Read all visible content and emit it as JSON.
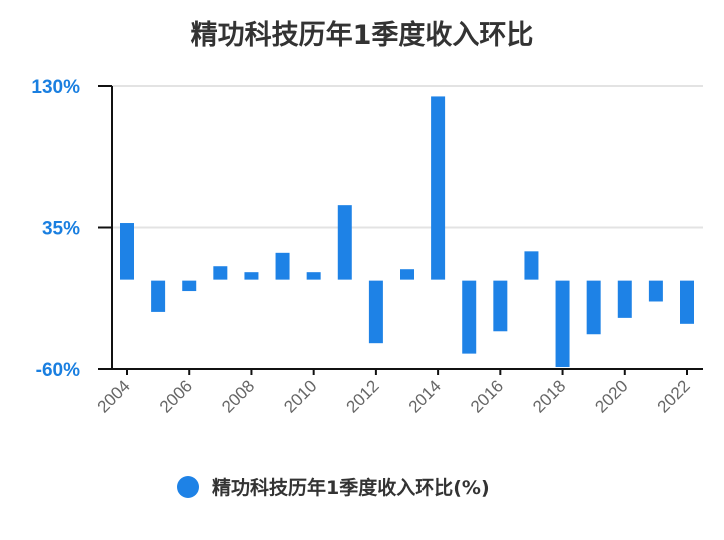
{
  "chart_data": {
    "type": "bar",
    "title": "精功科技历年1季度收入环比",
    "xlabel": "",
    "ylabel": "",
    "ylim": [
      -60,
      130
    ],
    "yticks": [
      "130%",
      "35%",
      "-60%"
    ],
    "ytick_values": [
      130,
      35,
      -60
    ],
    "grid": true,
    "legend_position": "bottom",
    "color": "#1e82e6",
    "categories": [
      "2004",
      "2005",
      "2006",
      "2007",
      "2008",
      "2009",
      "2010",
      "2011",
      "2012",
      "2013",
      "2014",
      "2015",
      "2016",
      "2017",
      "2018",
      "2019",
      "2020",
      "2021",
      "2022"
    ],
    "xtick_labels": [
      "2004",
      "2006",
      "2008",
      "2010",
      "2012",
      "2014",
      "2016",
      "2018",
      "2020",
      "2022"
    ],
    "series": [
      {
        "name": "精功科技历年1季度收入环比(%)",
        "values": [
          38,
          -21,
          -7,
          9,
          5,
          18,
          5,
          50,
          -42,
          7,
          123,
          -49,
          -34,
          19,
          -58,
          -36,
          -25,
          -14,
          -29
        ]
      }
    ]
  }
}
